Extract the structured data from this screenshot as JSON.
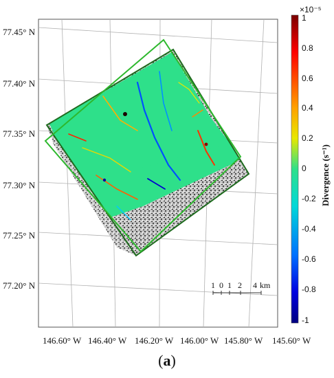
{
  "panel_label": {
    "open": "(",
    "letter": "a",
    "close": ")"
  },
  "lat_labels": [
    "77.45° N",
    "77.40° N",
    "77.35° N",
    "77.30° N",
    "77.25° N",
    "77.20° N"
  ],
  "lon_labels": [
    "146.60° W",
    "146.40° W",
    "146.20° W",
    "146.00° W",
    "145.80° W",
    "145.60° W"
  ],
  "colorbar": {
    "title": "Divergence (s⁻¹)",
    "exponent": "×10⁻⁵",
    "ticks": [
      "1",
      "0.8",
      "0.6",
      "0.4",
      "0.2",
      "0",
      "-0.2",
      "-0.4",
      "-0.6",
      "-0.8",
      "-1"
    ]
  },
  "scale_bar": {
    "labels": [
      "1",
      "0",
      "1",
      "2",
      "4"
    ],
    "unit": "km"
  },
  "colors": {
    "ice_background": "#2ee08a",
    "footprint_outline": "#2db82d",
    "image_outline": "#1e6b1e",
    "grid": "#aaaaaa",
    "noise_gray": "#b8b8b8"
  }
}
